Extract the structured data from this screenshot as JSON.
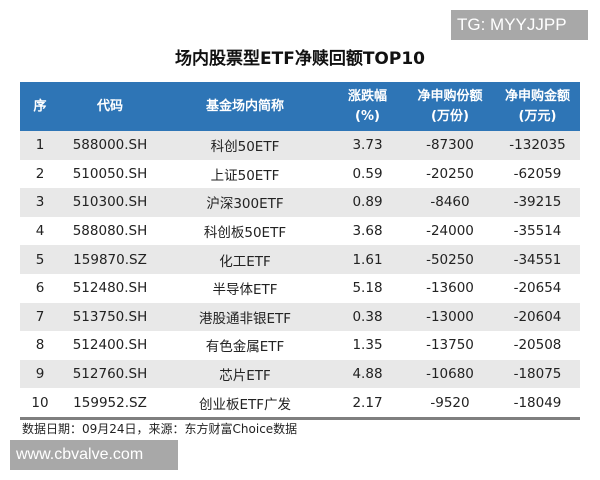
{
  "watermark_top": "TG: MYYJJPP",
  "title": "场内股票型ETF净赎回额TOP10",
  "table": {
    "headers": [
      {
        "line1": "序",
        "line2": ""
      },
      {
        "line1": "代码",
        "line2": ""
      },
      {
        "line1": "基金场内简称",
        "line2": ""
      },
      {
        "line1": "涨跌幅",
        "line2": "(%)"
      },
      {
        "line1": "净申购份额",
        "line2": "(万份)"
      },
      {
        "line1": "净申购金额",
        "line2": "(万元)"
      }
    ],
    "rows": [
      {
        "rank": "1",
        "code": "588000.SH",
        "name": "科创50ETF",
        "change": "3.73",
        "net_shares": "-87300",
        "net_amount": "-132035"
      },
      {
        "rank": "2",
        "code": "510050.SH",
        "name": "上证50ETF",
        "change": "0.59",
        "net_shares": "-20250",
        "net_amount": "-62059"
      },
      {
        "rank": "3",
        "code": "510300.SH",
        "name": "沪深300ETF",
        "change": "0.89",
        "net_shares": "-8460",
        "net_amount": "-39215"
      },
      {
        "rank": "4",
        "code": "588080.SH",
        "name": "科创板50ETF",
        "change": "3.68",
        "net_shares": "-24000",
        "net_amount": "-35514"
      },
      {
        "rank": "5",
        "code": "159870.SZ",
        "name": "化工ETF",
        "change": "1.61",
        "net_shares": "-50250",
        "net_amount": "-34551"
      },
      {
        "rank": "6",
        "code": "512480.SH",
        "name": "半导体ETF",
        "change": "5.18",
        "net_shares": "-13600",
        "net_amount": "-20654"
      },
      {
        "rank": "7",
        "code": "513750.SH",
        "name": "港股通非银ETF",
        "change": "0.38",
        "net_shares": "-13000",
        "net_amount": "-20604"
      },
      {
        "rank": "8",
        "code": "512400.SH",
        "name": "有色金属ETF",
        "change": "1.35",
        "net_shares": "-13750",
        "net_amount": "-20508"
      },
      {
        "rank": "9",
        "code": "512760.SH",
        "name": "芯片ETF",
        "change": "4.88",
        "net_shares": "-10680",
        "net_amount": "-18075"
      },
      {
        "rank": "10",
        "code": "159952.SZ",
        "name": "创业板ETF广发",
        "change": "2.17",
        "net_shares": "-9520",
        "net_amount": "-18049"
      }
    ]
  },
  "footer_note": "数据日期：09月24日，来源：东方财富Choice数据",
  "watermark_bottom": "www.cbvalve.com",
  "colors": {
    "header_bg": "#2e75b6",
    "stripe_bg": "#e8e8e8",
    "watermark_bg": "#a8a8a8"
  }
}
